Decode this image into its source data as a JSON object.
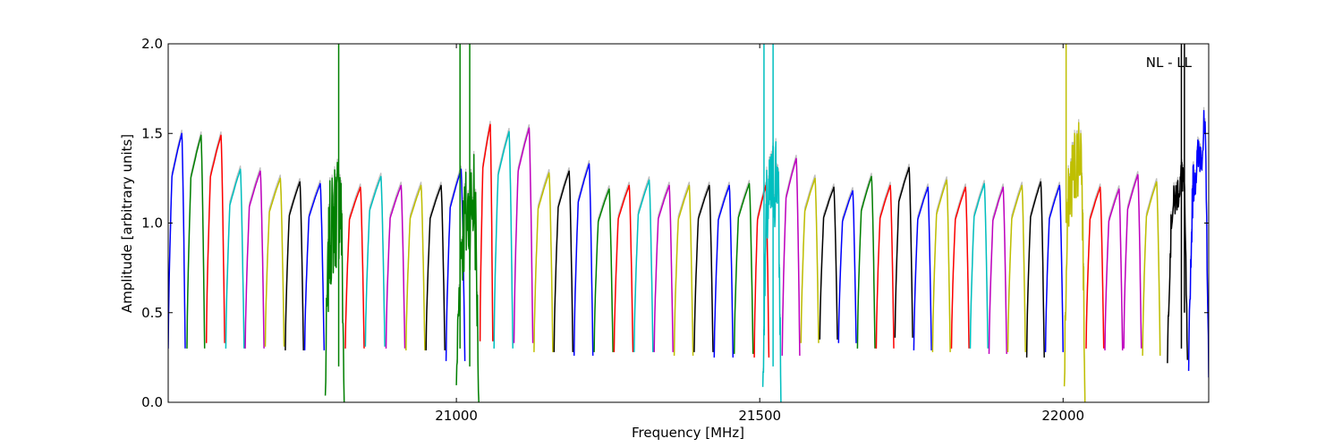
{
  "chart_data": {
    "type": "line",
    "title": "",
    "xlabel": "Frequency [MHz]",
    "ylabel": "Amplitude [arbitrary units]",
    "annotation": "NL - LL",
    "xlim": [
      20525,
      22240
    ],
    "ylim": [
      0.0,
      2.0
    ],
    "xticks": [
      21000,
      21500,
      22000
    ],
    "xtick_labels": [
      "21000",
      "21500",
      "22000"
    ],
    "yticks": [
      0.0,
      0.5,
      1.0,
      1.5,
      2.0
    ],
    "ytick_labels": [
      "0.0",
      "0.5",
      "1.0",
      "1.5",
      "2.0"
    ],
    "grid": false,
    "legend": "none",
    "colors": [
      "#0000ff",
      "#008000",
      "#ff0000",
      "#00bfbf",
      "#bf00bf",
      "#bfbf00",
      "#000000"
    ],
    "reference_color": "#bfbfbf",
    "bands": [
      {
        "x0": 20525,
        "x1": 20553,
        "y0": 0.3,
        "peak": 1.5,
        "color": "#0000ff",
        "noise": 0.0
      },
      {
        "x0": 20556,
        "x1": 20585,
        "y0": 0.3,
        "peak": 1.49,
        "color": "#008000",
        "noise": 0.0
      },
      {
        "x0": 20588,
        "x1": 20618,
        "y0": 0.33,
        "peak": 1.49,
        "color": "#ff0000",
        "noise": 0.0
      },
      {
        "x0": 20620,
        "x1": 20650,
        "y0": 0.3,
        "peak": 1.3,
        "color": "#00bfbf",
        "noise": 0.0
      },
      {
        "x0": 20652,
        "x1": 20683,
        "y0": 0.3,
        "peak": 1.29,
        "color": "#bf00bf",
        "noise": 0.0
      },
      {
        "x0": 20685,
        "x1": 20716,
        "y0": 0.31,
        "peak": 1.25,
        "color": "#bfbf00",
        "noise": 0.0
      },
      {
        "x0": 20718,
        "x1": 20748,
        "y0": 0.29,
        "peak": 1.23,
        "color": "#000000",
        "noise": 0.0
      },
      {
        "x0": 20750,
        "x1": 20782,
        "y0": 0.29,
        "peak": 1.22,
        "color": "#0000ff",
        "noise": 0.0
      },
      {
        "x0": 20784,
        "x1": 20815,
        "y0": 0.01,
        "peak": 1.15,
        "color": "#008000",
        "noise": 0.35
      },
      {
        "x0": 20817,
        "x1": 20848,
        "y0": 0.3,
        "peak": 1.2,
        "color": "#ff0000",
        "noise": 0.0
      },
      {
        "x0": 20850,
        "x1": 20882,
        "y0": 0.31,
        "peak": 1.26,
        "color": "#00bfbf",
        "noise": 0.0
      },
      {
        "x0": 20884,
        "x1": 20915,
        "y0": 0.3,
        "peak": 1.21,
        "color": "#bf00bf",
        "noise": 0.0
      },
      {
        "x0": 20917,
        "x1": 20948,
        "y0": 0.29,
        "peak": 1.21,
        "color": "#bfbf00",
        "noise": 0.0
      },
      {
        "x0": 20950,
        "x1": 20981,
        "y0": 0.29,
        "peak": 1.21,
        "color": "#000000",
        "noise": 0.0
      },
      {
        "x0": 20983,
        "x1": 21014,
        "y0": 0.23,
        "peak": 1.3,
        "color": "#0000ff",
        "noise": 0.0
      },
      {
        "x0": 21000,
        "x1": 21037,
        "y0": 0.0,
        "peak": 1.15,
        "color": "#008000",
        "noise": 0.35
      },
      {
        "x0": 21039,
        "x1": 21060,
        "y0": 0.34,
        "peak": 1.55,
        "color": "#ff0000",
        "noise": 0.0
      },
      {
        "x0": 21062,
        "x1": 21093,
        "y0": 0.3,
        "peak": 1.51,
        "color": "#00bfbf",
        "noise": 0.0
      },
      {
        "x0": 21095,
        "x1": 21126,
        "y0": 0.33,
        "peak": 1.53,
        "color": "#bf00bf",
        "noise": 0.0
      },
      {
        "x0": 21128,
        "x1": 21159,
        "y0": 0.28,
        "peak": 1.28,
        "color": "#bfbf00",
        "noise": 0.0
      },
      {
        "x0": 21161,
        "x1": 21192,
        "y0": 0.28,
        "peak": 1.29,
        "color": "#000000",
        "noise": 0.0
      },
      {
        "x0": 21194,
        "x1": 21225,
        "y0": 0.26,
        "peak": 1.33,
        "color": "#0000ff",
        "noise": 0.0
      },
      {
        "x0": 21227,
        "x1": 21258,
        "y0": 0.28,
        "peak": 1.19,
        "color": "#008000",
        "noise": 0.0
      },
      {
        "x0": 21260,
        "x1": 21291,
        "y0": 0.28,
        "peak": 1.21,
        "color": "#ff0000",
        "noise": 0.0
      },
      {
        "x0": 21293,
        "x1": 21324,
        "y0": 0.28,
        "peak": 1.24,
        "color": "#00bfbf",
        "noise": 0.0
      },
      {
        "x0": 21326,
        "x1": 21357,
        "y0": 0.28,
        "peak": 1.21,
        "color": "#bf00bf",
        "noise": 0.0
      },
      {
        "x0": 21359,
        "x1": 21390,
        "y0": 0.26,
        "peak": 1.21,
        "color": "#bfbf00",
        "noise": 0.0
      },
      {
        "x0": 21392,
        "x1": 21423,
        "y0": 0.28,
        "peak": 1.21,
        "color": "#000000",
        "noise": 0.0
      },
      {
        "x0": 21425,
        "x1": 21456,
        "y0": 0.25,
        "peak": 1.21,
        "color": "#0000ff",
        "noise": 0.0
      },
      {
        "x0": 21458,
        "x1": 21489,
        "y0": 0.27,
        "peak": 1.22,
        "color": "#008000",
        "noise": 0.0
      },
      {
        "x0": 21491,
        "x1": 21515,
        "y0": 0.25,
        "peak": 1.21,
        "color": "#ff0000",
        "noise": 0.0
      },
      {
        "x0": 21505,
        "x1": 21535,
        "y0": 0.02,
        "peak": 1.3,
        "color": "#00bfbf",
        "noise": 0.3
      },
      {
        "x0": 21537,
        "x1": 21566,
        "y0": 0.26,
        "peak": 1.36,
        "color": "#bf00bf",
        "noise": 0.0
      },
      {
        "x0": 21568,
        "x1": 21597,
        "y0": 0.33,
        "peak": 1.25,
        "color": "#bfbf00",
        "noise": 0.0
      },
      {
        "x0": 21599,
        "x1": 21628,
        "y0": 0.35,
        "peak": 1.2,
        "color": "#000000",
        "noise": 0.0
      },
      {
        "x0": 21630,
        "x1": 21659,
        "y0": 0.33,
        "peak": 1.18,
        "color": "#0000ff",
        "noise": 0.0
      },
      {
        "x0": 21661,
        "x1": 21690,
        "y0": 0.3,
        "peak": 1.26,
        "color": "#008000",
        "noise": 0.0
      },
      {
        "x0": 21692,
        "x1": 21721,
        "y0": 0.3,
        "peak": 1.21,
        "color": "#ff0000",
        "noise": 0.0
      },
      {
        "x0": 21723,
        "x1": 21752,
        "y0": 0.36,
        "peak": 1.31,
        "color": "#000000",
        "noise": 0.0
      },
      {
        "x0": 21754,
        "x1": 21783,
        "y0": 0.29,
        "peak": 1.2,
        "color": "#0000ff",
        "noise": 0.0
      },
      {
        "x0": 21785,
        "x1": 21814,
        "y0": 0.28,
        "peak": 1.24,
        "color": "#bfbf00",
        "noise": 0.0
      },
      {
        "x0": 21816,
        "x1": 21845,
        "y0": 0.3,
        "peak": 1.2,
        "color": "#ff0000",
        "noise": 0.0
      },
      {
        "x0": 21847,
        "x1": 21876,
        "y0": 0.3,
        "peak": 1.22,
        "color": "#00bfbf",
        "noise": 0.0
      },
      {
        "x0": 21878,
        "x1": 21907,
        "y0": 0.27,
        "peak": 1.2,
        "color": "#bf00bf",
        "noise": 0.0
      },
      {
        "x0": 21909,
        "x1": 21938,
        "y0": 0.28,
        "peak": 1.21,
        "color": "#bfbf00",
        "noise": 0.0
      },
      {
        "x0": 21940,
        "x1": 21969,
        "y0": 0.25,
        "peak": 1.23,
        "color": "#000000",
        "noise": 0.0
      },
      {
        "x0": 21971,
        "x1": 22000,
        "y0": 0.28,
        "peak": 1.21,
        "color": "#0000ff",
        "noise": 0.0
      },
      {
        "x0": 22002,
        "x1": 22036,
        "y0": 0.05,
        "peak": 1.45,
        "color": "#bfbf00",
        "noise": 0.25
      },
      {
        "x0": 22038,
        "x1": 22067,
        "y0": 0.3,
        "peak": 1.2,
        "color": "#ff0000",
        "noise": 0.0
      },
      {
        "x0": 22069,
        "x1": 22098,
        "y0": 0.29,
        "peak": 1.19,
        "color": "#bf00bf",
        "noise": 0.0
      },
      {
        "x0": 22100,
        "x1": 22129,
        "y0": 0.3,
        "peak": 1.27,
        "color": "#bf00bf",
        "noise": 0.0
      },
      {
        "x0": 22131,
        "x1": 22160,
        "y0": 0.26,
        "peak": 1.23,
        "color": "#bfbf00",
        "noise": 0.0
      },
      {
        "x0": 22172,
        "x1": 22205,
        "y0": 0.2,
        "peak": 1.28,
        "color": "#000000",
        "noise": 0.12
      },
      {
        "x0": 22207,
        "x1": 22240,
        "y0": 0.12,
        "peak": 1.5,
        "color": "#0000ff",
        "noise": 0.15
      }
    ],
    "spikes": [
      {
        "x": 20806,
        "y0": 0.2,
        "y1": 2.0,
        "color": "#008000"
      },
      {
        "x": 21006,
        "y0": 0.3,
        "y1": 2.0,
        "color": "#008000"
      },
      {
        "x": 21022,
        "y0": 0.2,
        "y1": 2.0,
        "color": "#008000"
      },
      {
        "x": 21507,
        "y0": 0.4,
        "y1": 2.0,
        "color": "#00bfbf"
      },
      {
        "x": 21522,
        "y0": 0.2,
        "y1": 2.0,
        "color": "#00bfbf"
      },
      {
        "x": 22005,
        "y0": 1.0,
        "y1": 2.0,
        "color": "#bfbf00"
      },
      {
        "x": 22195,
        "y0": 0.3,
        "y1": 2.0,
        "color": "#000000"
      },
      {
        "x": 22200,
        "y0": 0.5,
        "y1": 2.0,
        "color": "#000000"
      }
    ]
  }
}
